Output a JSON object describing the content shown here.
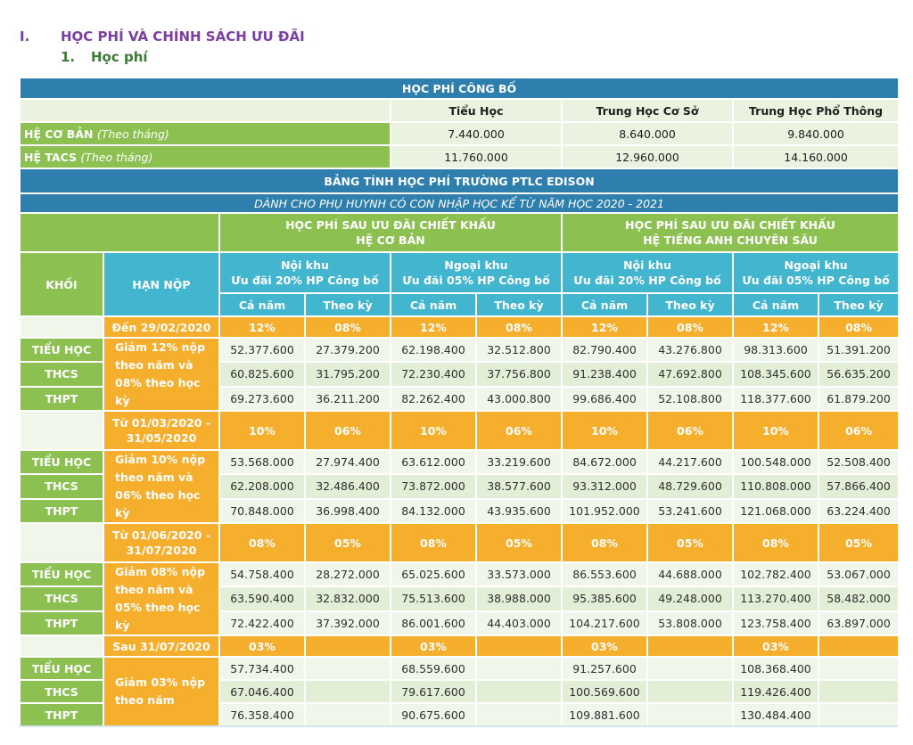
{
  "section": {
    "num": "I.",
    "title": "HỌC PHÍ VÀ CHÍNH SÁCH ƯU ĐÃI"
  },
  "subsection": {
    "num": "1.",
    "title": "Học phí"
  },
  "published": {
    "title": "HỌC PHÍ CÔNG BỐ",
    "levels": [
      "Tiểu Học",
      "Trung Học Cơ Sở",
      "Trung Học Phổ Thông"
    ],
    "rows": [
      {
        "label": "HỆ CƠ BẢN",
        "note": "(Theo tháng)",
        "values": [
          "7.440.000",
          "8.640.000",
          "9.840.000"
        ]
      },
      {
        "label": "HỆ TACS",
        "note": "(Theo tháng)",
        "values": [
          "11.760.000",
          "12.960.000",
          "14.160.000"
        ]
      }
    ]
  },
  "calc": {
    "title": "BẢNG TÍNH HỌC PHÍ TRƯỜNG PTLC EDISON",
    "subtitle": "DÀNH CHO PHỤ HUYNH CÓ CON NHẬP HỌC KỂ TỪ NĂM HỌC 2020 - 2021",
    "group_basic": [
      "HỌC PHÍ SAU ƯU ĐÃI CHIẾT KHẤU",
      "HỆ CƠ BẢN"
    ],
    "group_tacs": [
      "HỌC PHÍ SAU ƯU ĐÃI CHIẾT KHẤU",
      "HỆ TIẾNG ANH CHUYÊN SÂU"
    ],
    "col_grade": "KHỐI",
    "col_deadline": "HẠN NỘP",
    "zone_inner": [
      "Nội khu",
      "Ưu đãi 20% HP Công bố"
    ],
    "zone_outer": [
      "Ngoại khu",
      "Ưu đãi 05% HP Công bố"
    ],
    "per_year": "Cả năm",
    "per_term": "Theo kỳ",
    "periods": [
      {
        "deadline": "Đến 29/02/2020",
        "rates": [
          "12%",
          "08%",
          "12%",
          "08%",
          "12%",
          "08%",
          "12%",
          "08%"
        ],
        "note": "Giảm 12% nộp theo năm và 08% theo học kỳ",
        "rows": [
          {
            "grade": "TIỂU HỌC",
            "values": [
              "52.377.600",
              "27.379.200",
              "62.198.400",
              "32.512.800",
              "82.790.400",
              "43.276.800",
              "98.313.600",
              "51.391.200"
            ]
          },
          {
            "grade": "THCS",
            "values": [
              "60.825.600",
              "31.795.200",
              "72.230.400",
              "37.756.800",
              "91.238.400",
              "47.692.800",
              "108.345.600",
              "56.635.200"
            ]
          },
          {
            "grade": "THPT",
            "values": [
              "69.273.600",
              "36.211.200",
              "82.262.400",
              "43.000.800",
              "99.686.400",
              "52.108.800",
              "118.377.600",
              "61.879.200"
            ]
          }
        ]
      },
      {
        "deadline": "Từ 01/03/2020 - 31/05/2020",
        "rates": [
          "10%",
          "06%",
          "10%",
          "06%",
          "10%",
          "06%",
          "10%",
          "06%"
        ],
        "note": "Giảm 10% nộp theo năm và 06% theo học kỳ",
        "rows": [
          {
            "grade": "TIỂU HỌC",
            "values": [
              "53.568.000",
              "27.974.400",
              "63.612.000",
              "33.219.600",
              "84.672.000",
              "44.217.600",
              "100.548.000",
              "52.508.400"
            ]
          },
          {
            "grade": "THCS",
            "values": [
              "62.208.000",
              "32.486.400",
              "73.872.000",
              "38.577.600",
              "93.312.000",
              "48.729.600",
              "110.808.000",
              "57.866.400"
            ]
          },
          {
            "grade": "THPT",
            "values": [
              "70.848.000",
              "36.998.400",
              "84.132.000",
              "43.935.600",
              "101.952.000",
              "53.241.600",
              "121.068.000",
              "63.224.400"
            ]
          }
        ]
      },
      {
        "deadline": "Từ 01/06/2020 - 31/07/2020",
        "rates": [
          "08%",
          "05%",
          "08%",
          "05%",
          "08%",
          "05%",
          "08%",
          "05%"
        ],
        "note": "Giảm 08% nộp theo năm và 05% theo học kỳ",
        "rows": [
          {
            "grade": "TIỂU HỌC",
            "values": [
              "54.758.400",
              "28.272.000",
              "65.025.600",
              "33.573.000",
              "86.553.600",
              "44.688.000",
              "102.782.400",
              "53.067.000"
            ]
          },
          {
            "grade": "THCS",
            "values": [
              "63.590.400",
              "32.832.000",
              "75.513.600",
              "38.988.000",
              "95.385.600",
              "49.248.000",
              "113.270.400",
              "58.482.000"
            ]
          },
          {
            "grade": "THPT",
            "values": [
              "72.422.400",
              "37.392.000",
              "86.001.600",
              "44.403.000",
              "104.217.600",
              "53.808.000",
              "123.758.400",
              "63.897.000"
            ]
          }
        ]
      },
      {
        "deadline": "Sau 31/07/2020",
        "rates": [
          "03%",
          "",
          "03%",
          "",
          "03%",
          "",
          "03%",
          ""
        ],
        "note": "Giảm 03% nộp theo năm",
        "rows": [
          {
            "grade": "TIỂU HỌC",
            "values": [
              "57.734.400",
              "",
              "68.559.600",
              "",
              "91.257.600",
              "",
              "108.368.400",
              ""
            ]
          },
          {
            "grade": "THCS",
            "values": [
              "67.046.400",
              "",
              "79.617.600",
              "",
              "100.569.600",
              "",
              "119.426.400",
              ""
            ]
          },
          {
            "grade": "THPT",
            "values": [
              "76.358.400",
              "",
              "90.675.600",
              "",
              "109.881.600",
              "",
              "130.484.400",
              ""
            ]
          }
        ]
      }
    ]
  }
}
